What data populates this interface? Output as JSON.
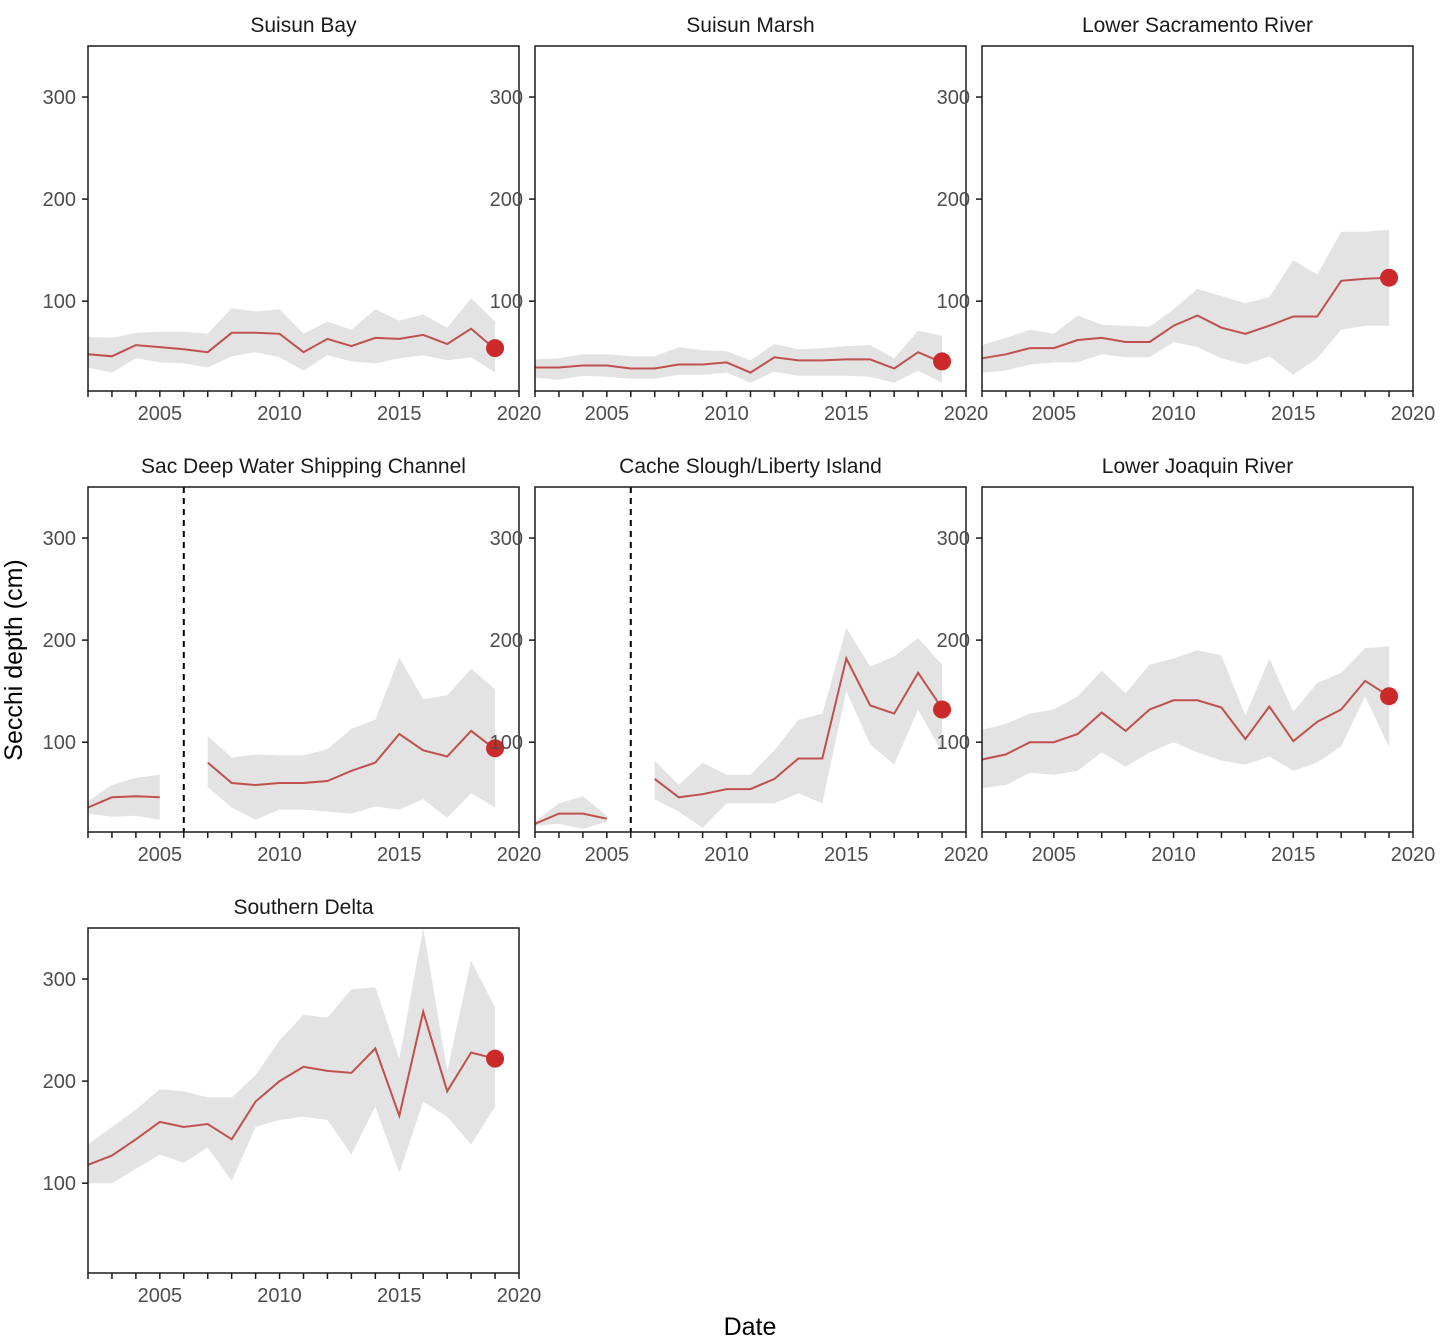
{
  "chart_data": {
    "type": "line",
    "xlabel": "Date",
    "ylabel": "Secchi depth (cm)",
    "xlim": [
      2002,
      2020
    ],
    "ylim": [
      12,
      350
    ],
    "x_ticks": [
      2005,
      2010,
      2015,
      2020
    ],
    "y_ticks": [
      100,
      200,
      300
    ],
    "grid": false,
    "colors": {
      "line": "#c0504d",
      "point": "#cc2a2a",
      "ribbon": "#e3e3e3",
      "axis": "#1a1a1a",
      "reference_line": "#000000"
    },
    "panels": [
      {
        "title": "Suisun Bay",
        "x": [
          2002,
          2003,
          2004,
          2005,
          2006,
          2007,
          2008,
          2009,
          2010,
          2011,
          2012,
          2013,
          2014,
          2015,
          2016,
          2017,
          2018,
          2019
        ],
        "y": [
          48,
          46,
          57,
          55,
          53,
          50,
          69,
          69,
          68,
          50,
          63,
          56,
          64,
          63,
          67,
          58,
          73,
          53
        ],
        "lower": [
          35,
          30,
          44,
          40,
          39,
          35,
          46,
          50,
          45,
          32,
          47,
          41,
          39,
          44,
          47,
          42,
          45,
          30
        ],
        "upper": [
          65,
          64,
          69,
          70,
          70,
          68,
          93,
          90,
          92,
          68,
          80,
          72,
          92,
          81,
          87,
          74,
          103,
          80
        ],
        "point": {
          "x": 2019,
          "y": 54
        },
        "reference_x": null
      },
      {
        "title": "Suisun Marsh",
        "x": [
          2002,
          2003,
          2004,
          2005,
          2006,
          2007,
          2008,
          2009,
          2010,
          2011,
          2012,
          2013,
          2014,
          2015,
          2016,
          2017,
          2018,
          2019
        ],
        "y": [
          35,
          35,
          37,
          37,
          34,
          34,
          38,
          38,
          40,
          30,
          45,
          42,
          42,
          43,
          43,
          34,
          50,
          40
        ],
        "lower": [
          25,
          23,
          27,
          26,
          24,
          24,
          28,
          28,
          30,
          20,
          31,
          27,
          27,
          27,
          26,
          20,
          32,
          20
        ],
        "upper": [
          43,
          44,
          48,
          48,
          46,
          46,
          55,
          52,
          51,
          42,
          58,
          53,
          54,
          56,
          57,
          44,
          71,
          66
        ],
        "point": {
          "x": 2019,
          "y": 41
        },
        "reference_x": null
      },
      {
        "title": "Lower Sacramento River",
        "x": [
          2002,
          2003,
          2004,
          2005,
          2006,
          2007,
          2008,
          2009,
          2010,
          2011,
          2012,
          2013,
          2014,
          2015,
          2016,
          2017,
          2018,
          2019
        ],
        "y": [
          44,
          48,
          54,
          54,
          62,
          64,
          60,
          60,
          76,
          86,
          74,
          68,
          76,
          85,
          85,
          120,
          122,
          123
        ],
        "lower": [
          30,
          32,
          38,
          40,
          40,
          48,
          45,
          45,
          60,
          55,
          44,
          38,
          46,
          28,
          44,
          72,
          76,
          76
        ],
        "upper": [
          57,
          64,
          72,
          68,
          86,
          77,
          76,
          75,
          92,
          112,
          105,
          98,
          104,
          140,
          126,
          168,
          168,
          170
        ],
        "point": {
          "x": 2019,
          "y": 123
        },
        "reference_x": null
      },
      {
        "title": "Sac Deep Water Shipping Channel",
        "segments": [
          {
            "x": [
              2002,
              2003,
              2004,
              2005
            ],
            "y": [
              36,
              46,
              47,
              46
            ],
            "lower": [
              30,
              27,
              28,
              24
            ],
            "upper": [
              42,
              58,
              65,
              68
            ]
          },
          {
            "x": [
              2007,
              2008,
              2009,
              2010,
              2011,
              2012,
              2013,
              2014,
              2015,
              2016,
              2017,
              2018,
              2019
            ],
            "y": [
              80,
              60,
              58,
              60,
              60,
              62,
              72,
              80,
              108,
              92,
              86,
              111,
              93
            ],
            "lower": [
              56,
              36,
              24,
              34,
              34,
              32,
              30,
              37,
              34,
              44,
              26,
              50,
              36
            ],
            "upper": [
              106,
              85,
              88,
              87,
              87,
              93,
              113,
              122,
              183,
              142,
              146,
              172,
              152
            ]
          }
        ],
        "point": {
          "x": 2019,
          "y": 94
        },
        "reference_x": 2006
      },
      {
        "title": "Cache Slough/Liberty Island",
        "segments": [
          {
            "x": [
              2002,
              2003,
              2004,
              2005
            ],
            "y": [
              20,
              30,
              30,
              25
            ],
            "lower": [
              18,
              20,
              15,
              22
            ],
            "upper": [
              22,
              40,
              47,
              28
            ]
          },
          {
            "x": [
              2007,
              2008,
              2009,
              2010,
              2011,
              2012,
              2013,
              2014,
              2015,
              2016,
              2017,
              2018,
              2019
            ],
            "y": [
              64,
              46,
              49,
              54,
              54,
              64,
              84,
              84,
              182,
              136,
              128,
              168,
              133
            ],
            "lower": [
              44,
              32,
              16,
              40,
              40,
              40,
              50,
              40,
              150,
              98,
              78,
              132,
              90
            ],
            "upper": [
              82,
              58,
              80,
              68,
              68,
              92,
              122,
              128,
              212,
              174,
              184,
              202,
              176
            ]
          }
        ],
        "point": {
          "x": 2019,
          "y": 132
        },
        "reference_x": 2006
      },
      {
        "title": "Lower Joaquin River",
        "x": [
          2002,
          2003,
          2004,
          2005,
          2006,
          2007,
          2008,
          2009,
          2010,
          2011,
          2012,
          2013,
          2014,
          2015,
          2016,
          2017,
          2018,
          2019
        ],
        "y": [
          83,
          88,
          100,
          100,
          108,
          129,
          111,
          132,
          141,
          141,
          134,
          103,
          135,
          101,
          120,
          132,
          160,
          145
        ],
        "lower": [
          55,
          58,
          70,
          68,
          72,
          90,
          76,
          90,
          100,
          90,
          82,
          78,
          86,
          72,
          80,
          96,
          145,
          95
        ],
        "upper": [
          112,
          118,
          128,
          132,
          145,
          170,
          148,
          176,
          182,
          190,
          185,
          126,
          182,
          130,
          158,
          168,
          192,
          194
        ],
        "point": {
          "x": 2019,
          "y": 145
        },
        "reference_x": null
      },
      {
        "title": "Southern Delta",
        "x": [
          2002,
          2003,
          2004,
          2005,
          2006,
          2007,
          2008,
          2009,
          2010,
          2011,
          2012,
          2013,
          2014,
          2015,
          2016,
          2017,
          2018,
          2019
        ],
        "y": [
          118,
          127,
          143,
          160,
          155,
          158,
          143,
          180,
          200,
          214,
          210,
          208,
          232,
          166,
          268,
          190,
          228,
          222
        ],
        "lower": [
          100,
          100,
          114,
          128,
          120,
          135,
          102,
          155,
          162,
          165,
          162,
          128,
          175,
          110,
          180,
          165,
          138,
          175
        ],
        "upper": [
          138,
          155,
          172,
          192,
          190,
          184,
          184,
          206,
          240,
          265,
          262,
          290,
          292,
          222,
          350,
          210,
          318,
          272
        ],
        "point": {
          "x": 2019,
          "y": 222
        },
        "reference_x": null
      }
    ]
  }
}
